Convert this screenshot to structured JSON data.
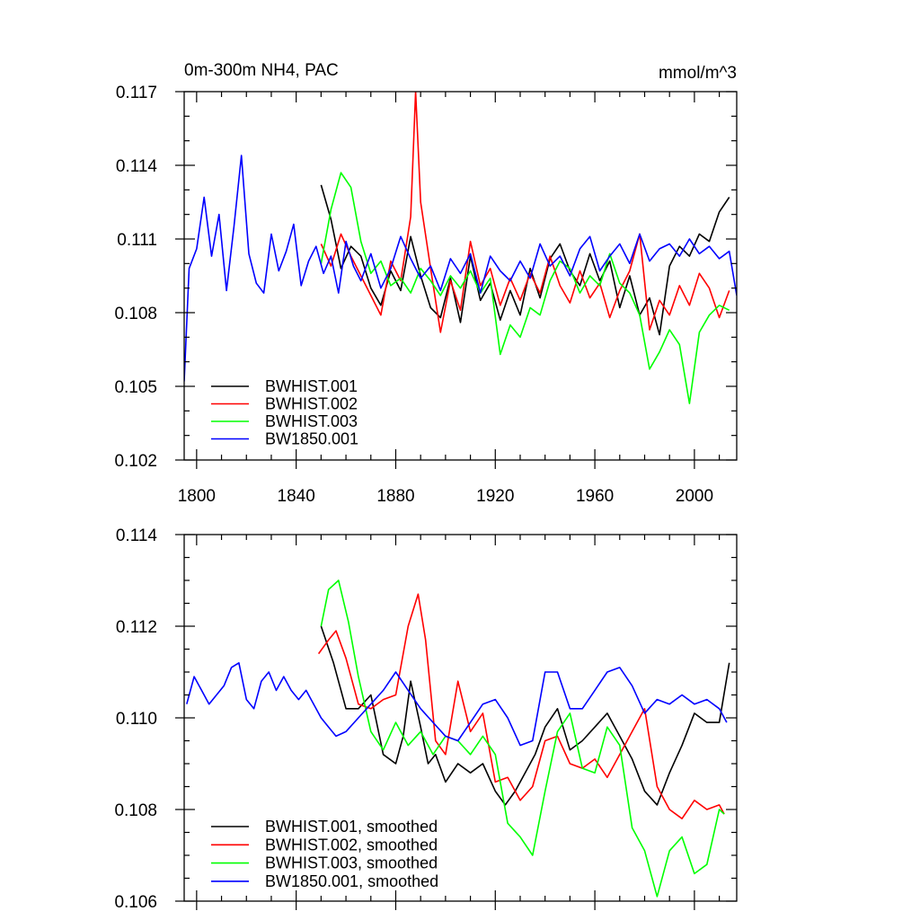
{
  "chart_data": [
    {
      "type": "line",
      "title": "0m-300m NH4, PAC",
      "units": "mmol/m^3",
      "xlim": [
        1795,
        2017
      ],
      "ylim": [
        0.102,
        0.117
      ],
      "xticks": [
        1800,
        1840,
        1880,
        1920,
        1960,
        2000
      ],
      "yticks": [
        0.102,
        0.105,
        0.108,
        0.111,
        0.114,
        0.117
      ],
      "ytick_labels": [
        "0.102",
        "0.105",
        "0.108",
        "0.111",
        "0.114",
        "0.117"
      ],
      "grid": false,
      "legend_position": "bottom-left",
      "series": [
        {
          "name": "BWHIST.001",
          "color": "#000000",
          "x": [
            1850,
            1854,
            1858,
            1862,
            1866,
            1870,
            1874,
            1878,
            1882,
            1886,
            1890,
            1894,
            1898,
            1902,
            1906,
            1910,
            1914,
            1918,
            1922,
            1926,
            1930,
            1934,
            1938,
            1942,
            1946,
            1950,
            1954,
            1958,
            1962,
            1966,
            1970,
            1974,
            1978,
            1982,
            1986,
            1990,
            1994,
            1998,
            2002,
            2006,
            2010,
            2014
          ],
          "y": [
            0.1132,
            0.1118,
            0.1098,
            0.1107,
            0.1103,
            0.109,
            0.1083,
            0.1097,
            0.1089,
            0.1111,
            0.1095,
            0.1082,
            0.1078,
            0.1094,
            0.1076,
            0.1103,
            0.1085,
            0.1092,
            0.1077,
            0.1089,
            0.1079,
            0.1098,
            0.1086,
            0.1102,
            0.1108,
            0.1097,
            0.1091,
            0.1104,
            0.1093,
            0.1101,
            0.1082,
            0.1095,
            0.1079,
            0.1086,
            0.1071,
            0.1099,
            0.1107,
            0.1103,
            0.1112,
            0.1109,
            0.1121,
            0.1127
          ]
        },
        {
          "name": "BWHIST.002",
          "color": "#ff0000",
          "x": [
            1850,
            1854,
            1858,
            1862,
            1866,
            1870,
            1874,
            1878,
            1882,
            1886,
            1888,
            1890,
            1894,
            1898,
            1902,
            1906,
            1910,
            1914,
            1918,
            1922,
            1926,
            1930,
            1934,
            1938,
            1942,
            1946,
            1950,
            1954,
            1958,
            1962,
            1966,
            1970,
            1974,
            1978,
            1982,
            1986,
            1990,
            1994,
            1998,
            2002,
            2006,
            2010,
            2014
          ],
          "y": [
            0.1108,
            0.1099,
            0.1112,
            0.1103,
            0.1095,
            0.1087,
            0.1079,
            0.1101,
            0.1093,
            0.1119,
            0.117,
            0.1125,
            0.1098,
            0.1072,
            0.1093,
            0.1081,
            0.1109,
            0.1091,
            0.1098,
            0.1083,
            0.1094,
            0.1085,
            0.1096,
            0.1088,
            0.1103,
            0.1091,
            0.1084,
            0.1097,
            0.1086,
            0.1092,
            0.1078,
            0.1089,
            0.1097,
            0.1112,
            0.1073,
            0.1085,
            0.1079,
            0.1091,
            0.1083,
            0.1096,
            0.109,
            0.1078,
            0.1089
          ]
        },
        {
          "name": "BWHIST.003",
          "color": "#00ff00",
          "x": [
            1850,
            1854,
            1858,
            1862,
            1866,
            1870,
            1874,
            1878,
            1882,
            1886,
            1890,
            1894,
            1898,
            1902,
            1906,
            1910,
            1914,
            1918,
            1922,
            1926,
            1930,
            1934,
            1938,
            1942,
            1946,
            1950,
            1954,
            1958,
            1962,
            1966,
            1970,
            1974,
            1978,
            1982,
            1986,
            1990,
            1994,
            1998,
            2002,
            2006,
            2010,
            2014
          ],
          "y": [
            0.11,
            0.1122,
            0.1137,
            0.1131,
            0.1109,
            0.1096,
            0.1101,
            0.1091,
            0.1094,
            0.1088,
            0.1098,
            0.1093,
            0.1087,
            0.1095,
            0.109,
            0.1097,
            0.1088,
            0.1094,
            0.1063,
            0.1075,
            0.107,
            0.1082,
            0.1079,
            0.1093,
            0.1101,
            0.1098,
            0.1088,
            0.1095,
            0.1091,
            0.1104,
            0.1092,
            0.1088,
            0.1079,
            0.1057,
            0.1064,
            0.1073,
            0.1067,
            0.1043,
            0.1072,
            0.1079,
            0.1083,
            0.1081
          ]
        },
        {
          "name": "BW1850.001",
          "color": "#0000ff",
          "x": [
            1795,
            1797,
            1800,
            1803,
            1806,
            1809,
            1812,
            1815,
            1818,
            1821,
            1824,
            1827,
            1830,
            1833,
            1836,
            1839,
            1842,
            1845,
            1848,
            1851,
            1854,
            1857,
            1860,
            1863,
            1866,
            1870,
            1874,
            1878,
            1882,
            1886,
            1890,
            1894,
            1898,
            1902,
            1906,
            1910,
            1914,
            1918,
            1922,
            1926,
            1930,
            1934,
            1938,
            1942,
            1946,
            1950,
            1954,
            1958,
            1962,
            1966,
            1970,
            1974,
            1978,
            1982,
            1986,
            1990,
            1994,
            1998,
            2002,
            2006,
            2010,
            2014,
            2017
          ],
          "y": [
            0.1052,
            0.1098,
            0.1106,
            0.1127,
            0.1103,
            0.112,
            0.1089,
            0.1115,
            0.1144,
            0.1104,
            0.1092,
            0.1088,
            0.1112,
            0.1097,
            0.1105,
            0.1116,
            0.1091,
            0.1101,
            0.1107,
            0.1096,
            0.1103,
            0.1088,
            0.1109,
            0.1099,
            0.1093,
            0.1104,
            0.109,
            0.1098,
            0.1111,
            0.1102,
            0.1094,
            0.1099,
            0.1089,
            0.1102,
            0.1096,
            0.1104,
            0.1088,
            0.1103,
            0.1097,
            0.1093,
            0.1101,
            0.1094,
            0.1108,
            0.1099,
            0.1103,
            0.1095,
            0.1106,
            0.1111,
            0.1097,
            0.1103,
            0.1108,
            0.11,
            0.1112,
            0.1101,
            0.1106,
            0.1108,
            0.1103,
            0.111,
            0.1104,
            0.1107,
            0.1102,
            0.1105,
            0.1087
          ]
        }
      ]
    },
    {
      "type": "line",
      "xlim": [
        1795,
        2017
      ],
      "ylim": [
        0.106,
        0.114
      ],
      "xticks": [
        1800,
        1840,
        1880,
        1920,
        1960,
        2000
      ],
      "yticks": [
        0.106,
        0.108,
        0.11,
        0.112,
        0.114
      ],
      "ytick_labels": [
        "0.106",
        "0.108",
        "0.110",
        "0.112",
        "0.114"
      ],
      "grid": false,
      "legend_position": "bottom-left",
      "series": [
        {
          "name": "BWHIST.001, smoothed",
          "color": "#000000",
          "x": [
            1850,
            1855,
            1860,
            1865,
            1870,
            1875,
            1880,
            1883,
            1886,
            1890,
            1893,
            1896,
            1900,
            1905,
            1910,
            1915,
            1920,
            1924,
            1928,
            1932,
            1936,
            1940,
            1945,
            1950,
            1955,
            1960,
            1965,
            1970,
            1975,
            1980,
            1985,
            1990,
            1995,
            2000,
            2005,
            2010,
            2014
          ],
          "y": [
            0.112,
            0.1112,
            0.1102,
            0.1102,
            0.1105,
            0.1092,
            0.109,
            0.1096,
            0.1108,
            0.1098,
            0.109,
            0.1092,
            0.1086,
            0.109,
            0.1088,
            0.109,
            0.1084,
            0.1081,
            0.1084,
            0.1088,
            0.1092,
            0.1098,
            0.1102,
            0.1093,
            0.1095,
            0.1098,
            0.1101,
            0.1096,
            0.1091,
            0.1084,
            0.1081,
            0.1088,
            0.1094,
            0.1101,
            0.1099,
            0.1099,
            0.1112
          ]
        },
        {
          "name": "BWHIST.002, smoothed",
          "color": "#ff0000",
          "x": [
            1849,
            1853,
            1856,
            1860,
            1865,
            1870,
            1875,
            1880,
            1885,
            1889,
            1892,
            1896,
            1900,
            1905,
            1910,
            1915,
            1920,
            1925,
            1930,
            1935,
            1940,
            1945,
            1950,
            1955,
            1960,
            1965,
            1970,
            1975,
            1980,
            1985,
            1990,
            1995,
            2000,
            2005,
            2010,
            2012
          ],
          "y": [
            0.1114,
            0.1117,
            0.1119,
            0.1113,
            0.1103,
            0.1102,
            0.1104,
            0.1105,
            0.112,
            0.1127,
            0.1117,
            0.1095,
            0.1092,
            0.1108,
            0.1097,
            0.1101,
            0.1086,
            0.1087,
            0.1082,
            0.1085,
            0.1095,
            0.1096,
            0.109,
            0.1089,
            0.1091,
            0.1087,
            0.1092,
            0.1097,
            0.1102,
            0.1085,
            0.108,
            0.1078,
            0.1082,
            0.108,
            0.1081,
            0.1079
          ]
        },
        {
          "name": "BWHIST.003, smoothed",
          "color": "#00ff00",
          "x": [
            1850,
            1853,
            1857,
            1861,
            1865,
            1870,
            1875,
            1880,
            1885,
            1890,
            1895,
            1900,
            1905,
            1910,
            1915,
            1920,
            1925,
            1930,
            1935,
            1940,
            1945,
            1950,
            1955,
            1960,
            1965,
            1970,
            1975,
            1980,
            1985,
            1990,
            1995,
            2000,
            2005,
            2010,
            2012
          ],
          "y": [
            0.112,
            0.1128,
            0.113,
            0.1121,
            0.1109,
            0.1097,
            0.1093,
            0.1099,
            0.1094,
            0.1097,
            0.1092,
            0.1096,
            0.1095,
            0.1092,
            0.1096,
            0.1092,
            0.1077,
            0.1074,
            0.107,
            0.1084,
            0.1097,
            0.1101,
            0.1089,
            0.1088,
            0.1098,
            0.1094,
            0.1076,
            0.1071,
            0.1061,
            0.1071,
            0.1074,
            0.1066,
            0.1068,
            0.108,
            0.1079
          ]
        },
        {
          "name": "BW1850.001, smoothed",
          "color": "#0000ff",
          "x": [
            1796,
            1799,
            1802,
            1805,
            1808,
            1811,
            1814,
            1817,
            1820,
            1823,
            1826,
            1829,
            1832,
            1835,
            1838,
            1841,
            1844,
            1847,
            1850,
            1853,
            1856,
            1860,
            1865,
            1870,
            1875,
            1880,
            1885,
            1890,
            1895,
            1900,
            1905,
            1910,
            1915,
            1920,
            1925,
            1930,
            1935,
            1940,
            1945,
            1950,
            1955,
            1960,
            1965,
            1970,
            1975,
            1980,
            1985,
            1990,
            1995,
            2000,
            2005,
            2010,
            2013
          ],
          "y": [
            0.1103,
            0.1109,
            0.1106,
            0.1103,
            0.1105,
            0.1107,
            0.1111,
            0.1112,
            0.1104,
            0.1102,
            0.1108,
            0.111,
            0.1106,
            0.1109,
            0.1106,
            0.1104,
            0.1106,
            0.1103,
            0.11,
            0.1098,
            0.1096,
            0.1097,
            0.11,
            0.1103,
            0.1106,
            0.111,
            0.1106,
            0.1102,
            0.1099,
            0.1096,
            0.1095,
            0.1099,
            0.1103,
            0.1104,
            0.11,
            0.1094,
            0.1095,
            0.111,
            0.111,
            0.1102,
            0.1102,
            0.1106,
            0.111,
            0.1111,
            0.1107,
            0.1101,
            0.1104,
            0.1103,
            0.1105,
            0.1103,
            0.1104,
            0.1102,
            0.1099
          ]
        }
      ]
    }
  ]
}
